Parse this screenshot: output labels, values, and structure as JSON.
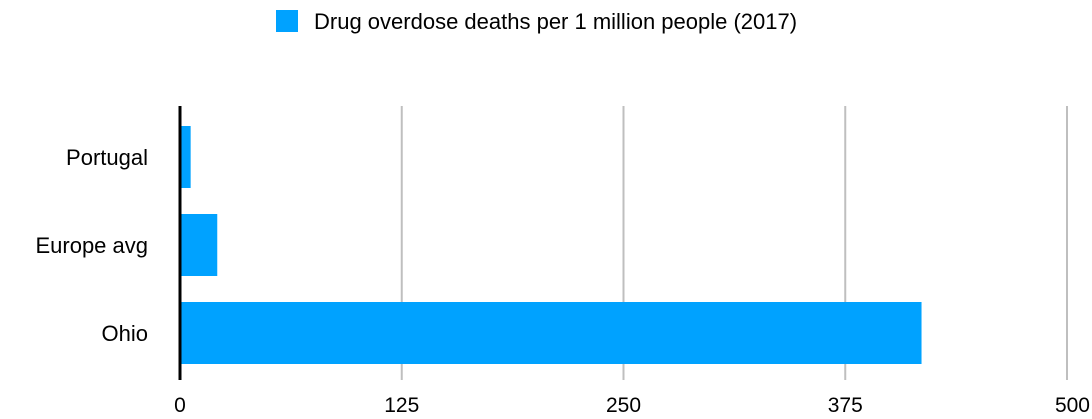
{
  "colors": {
    "bar": "#00A2FF",
    "grid": "#BFBFBF",
    "axis": "#000000"
  },
  "chart_data": {
    "type": "bar",
    "orientation": "horizontal",
    "categories": [
      "Portugal",
      "Europe avg",
      "Ohio"
    ],
    "series": [
      {
        "name": "Drug overdose deaths per 1 million people (2017)",
        "values": [
          6,
          21,
          418
        ]
      }
    ],
    "xlim": [
      0,
      500
    ],
    "xticks": [
      "0",
      "125",
      "250",
      "375",
      "500"
    ],
    "grid": "vertical",
    "legend_position": "top-center"
  }
}
